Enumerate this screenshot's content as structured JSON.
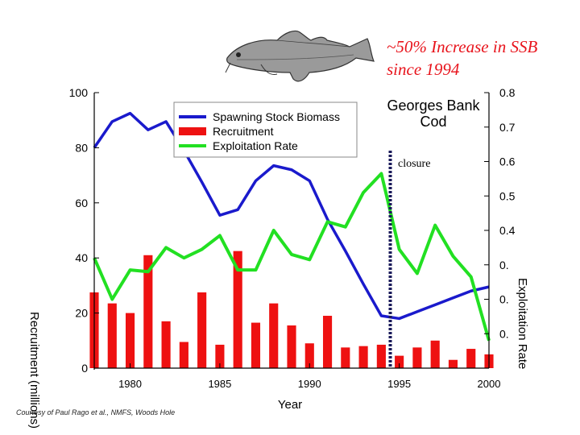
{
  "headline": {
    "line1": "~50% Increase in SSB",
    "line2": "since 1994"
  },
  "credit": "Courtesy of Paul Rago et al., NMFS, Woods Hole",
  "fish_icon": "cod-fish-icon",
  "colors": {
    "ssb": "#1a1acc",
    "recruitment": "#ee1111",
    "exploitation": "#22e022",
    "closure": "#1a1a5a",
    "headline": "#e8141c"
  },
  "chart_data": {
    "type": "bar",
    "title": "Georges Bank Cod",
    "annotation": "closure",
    "closure_year": 1994.5,
    "xlabel": "Year",
    "ylabel_left": "Recruitment (millions)",
    "ylabel_right": "Exploitation Rate",
    "xlim": [
      1978,
      2000
    ],
    "x_ticks": [
      1980,
      1985,
      1990,
      1995,
      2000
    ],
    "ylim_left": [
      0,
      100
    ],
    "y_ticks_left": [
      0,
      20,
      40,
      60,
      80,
      100
    ],
    "ylim_right": [
      0,
      0.8
    ],
    "y_ticks_right": [
      "0.",
      "0.",
      "0.",
      "0.4",
      "0.5",
      "0.6",
      "0.7",
      "0.8"
    ],
    "legend_position": "top-center",
    "series": [
      {
        "name": "Spawning Stock Biomass",
        "kind": "line",
        "axis": "left",
        "x": [
          1978,
          1979,
          1980,
          1981,
          1982,
          1983,
          1984,
          1985,
          1986,
          1987,
          1988,
          1989,
          1990,
          1991,
          1992,
          1993,
          1994,
          1995,
          1996,
          1997,
          1998,
          1999,
          2000
        ],
        "values": [
          80,
          89.5,
          92.5,
          86.5,
          89.5,
          79,
          67.5,
          55.5,
          57.5,
          68,
          73.5,
          72,
          68,
          54,
          42.5,
          30.5,
          19,
          18,
          20.5,
          23,
          25.5,
          28,
          29.5
        ]
      },
      {
        "name": "Recruitment",
        "kind": "bar",
        "axis": "left",
        "x": [
          1978,
          1979,
          1980,
          1981,
          1982,
          1983,
          1984,
          1985,
          1986,
          1987,
          1988,
          1989,
          1990,
          1991,
          1992,
          1993,
          1994,
          1995,
          1996,
          1997,
          1998,
          1999,
          2000
        ],
        "values": [
          27.5,
          23.5,
          20,
          41,
          17,
          9.5,
          27.5,
          8.5,
          42.5,
          16.5,
          23.5,
          15.5,
          9,
          19,
          7.5,
          8,
          8.5,
          4.5,
          7.5,
          10,
          3,
          7,
          5
        ]
      },
      {
        "name": "Exploitation Rate",
        "kind": "line",
        "axis": "right",
        "x": [
          1978,
          1979,
          1980,
          1981,
          1982,
          1983,
          1984,
          1985,
          1986,
          1987,
          1988,
          1989,
          1990,
          1991,
          1992,
          1993,
          1994,
          1995,
          1996,
          1997,
          1998,
          1999,
          2000
        ],
        "values": [
          0.32,
          0.2,
          0.285,
          0.28,
          0.35,
          0.32,
          0.345,
          0.385,
          0.285,
          0.285,
          0.4,
          0.33,
          0.315,
          0.425,
          0.41,
          0.51,
          0.565,
          0.345,
          0.275,
          0.415,
          0.325,
          0.265,
          0.08
        ]
      }
    ]
  }
}
